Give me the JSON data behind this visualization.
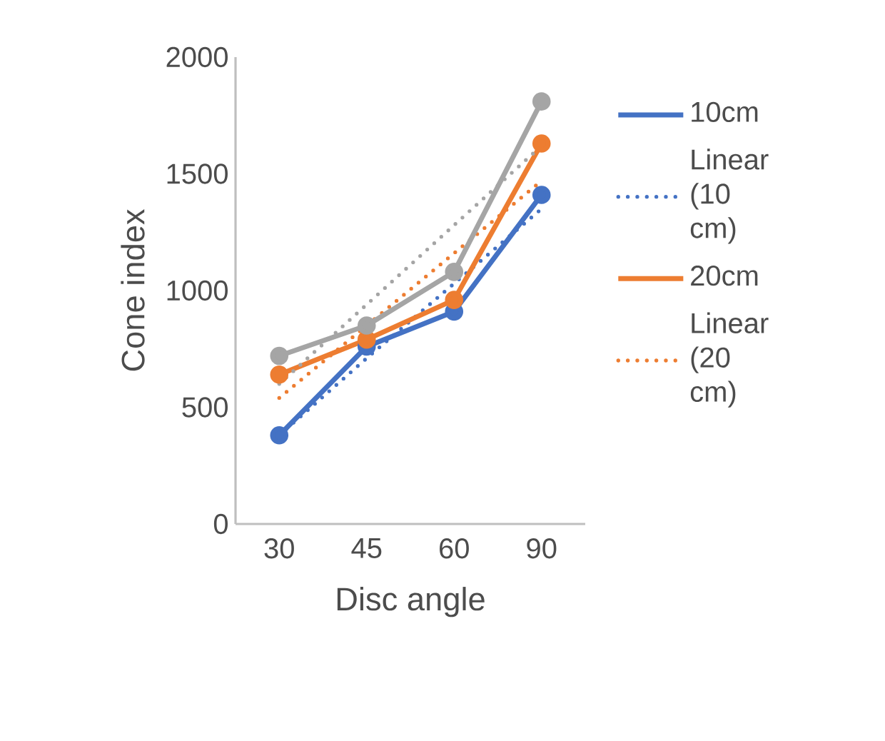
{
  "chart_data": {
    "type": "line",
    "xlabel": "Disc angle",
    "ylabel": "Cone index",
    "categories": [
      "30",
      "45",
      "60",
      "90"
    ],
    "series": [
      {
        "name": "10cm",
        "color": "#4472c4",
        "values": [
          380,
          760,
          910,
          1410
        ],
        "marker": "circle",
        "line_style": "solid"
      },
      {
        "name": "Linear (10 cm)",
        "color": "#4472c4",
        "values": [
          380,
          710,
          1030,
          1350
        ],
        "marker": "none",
        "line_style": "dotted"
      },
      {
        "name": "20cm",
        "color": "#ed7d31",
        "values": [
          640,
          790,
          960,
          1630
        ],
        "marker": "circle",
        "line_style": "solid"
      },
      {
        "name": "Linear (20 cm)",
        "color": "#ed7d31",
        "values": [
          540,
          850,
          1160,
          1470
        ],
        "marker": "none",
        "line_style": "dotted"
      },
      {
        "color": "#a5a5a5",
        "values": [
          720,
          850,
          1080,
          1810
        ],
        "marker": "circle",
        "line_style": "solid"
      },
      {
        "color": "#a5a5a5",
        "values": [
          600,
          940,
          1280,
          1620
        ],
        "marker": "none",
        "line_style": "dotted"
      }
    ],
    "ylim": [
      0,
      2000
    ],
    "yticks": [
      0,
      500,
      1000,
      1500,
      2000
    ],
    "grid": false,
    "legend": "right"
  }
}
